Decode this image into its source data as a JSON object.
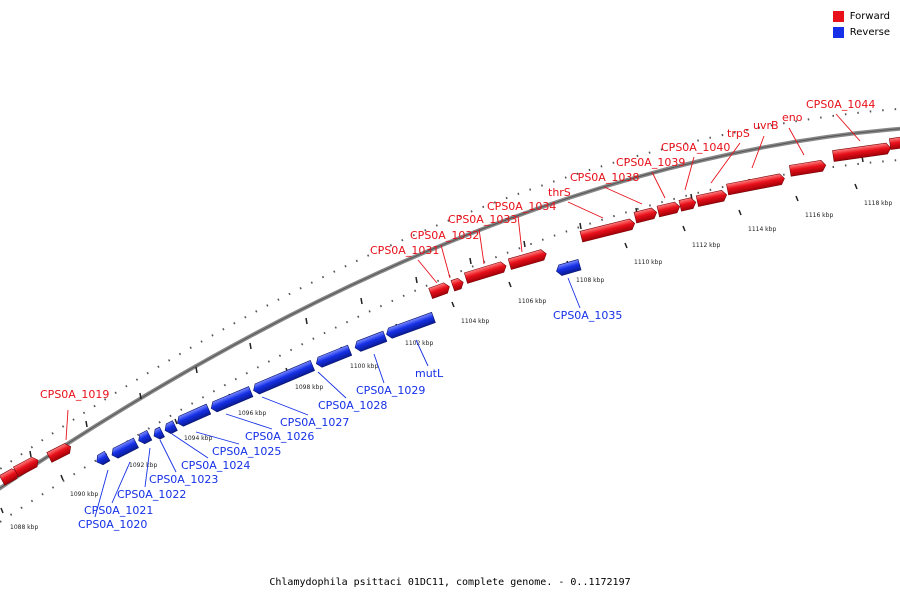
{
  "caption": "Chlamydophila psittaci 01DC11, complete genome. - 0..1172197",
  "colors": {
    "forward": "#e8101a",
    "reverse": "#1530e6",
    "backbone": "#888888",
    "pointer": "#222222"
  },
  "legend": [
    {
      "label": "Forward",
      "color": "#e8101a"
    },
    {
      "label": "Reverse",
      "color": "#1530e6"
    }
  ],
  "tick_labels": [
    "1088 kbp",
    "1090 kbp",
    "1092 kbp",
    "1094 kbp",
    "1096 kbp",
    "1098 kbp",
    "1100 kbp",
    "1102 kbp",
    "1104 kbp",
    "1106 kbp",
    "1108 kbp",
    "1110 kbp",
    "1112 kbp",
    "1114 kbp",
    "1116 kbp",
    "1118 kbp"
  ],
  "genes": [
    {
      "label": "CPS0A_1019",
      "strand": "forward"
    },
    {
      "label": "CPS0A_1020",
      "strand": "reverse"
    },
    {
      "label": "CPS0A_1021",
      "strand": "reverse"
    },
    {
      "label": "CPS0A_1022",
      "strand": "reverse"
    },
    {
      "label": "CPS0A_1023",
      "strand": "reverse"
    },
    {
      "label": "CPS0A_1024",
      "strand": "reverse"
    },
    {
      "label": "CPS0A_1025",
      "strand": "reverse"
    },
    {
      "label": "CPS0A_1026",
      "strand": "reverse"
    },
    {
      "label": "CPS0A_1027",
      "strand": "reverse"
    },
    {
      "label": "CPS0A_1028",
      "strand": "reverse"
    },
    {
      "label": "CPS0A_1029",
      "strand": "reverse"
    },
    {
      "label": "mutL",
      "strand": "reverse"
    },
    {
      "label": "CPS0A_1031",
      "strand": "forward"
    },
    {
      "label": "CPS0A_1032",
      "strand": "forward"
    },
    {
      "label": "CPS0A_1033",
      "strand": "forward"
    },
    {
      "label": "CPS0A_1034",
      "strand": "forward"
    },
    {
      "label": "CPS0A_1035",
      "strand": "reverse"
    },
    {
      "label": "thrS",
      "strand": "forward"
    },
    {
      "label": "CPS0A_1038",
      "strand": "forward"
    },
    {
      "label": "CPS0A_1039",
      "strand": "forward"
    },
    {
      "label": "CPS0A_1040",
      "strand": "forward"
    },
    {
      "label": "trpS",
      "strand": "forward"
    },
    {
      "label": "uvrB",
      "strand": "forward"
    },
    {
      "label": "eno",
      "strand": "forward"
    },
    {
      "label": "CPS0A_1044",
      "strand": "forward"
    }
  ]
}
